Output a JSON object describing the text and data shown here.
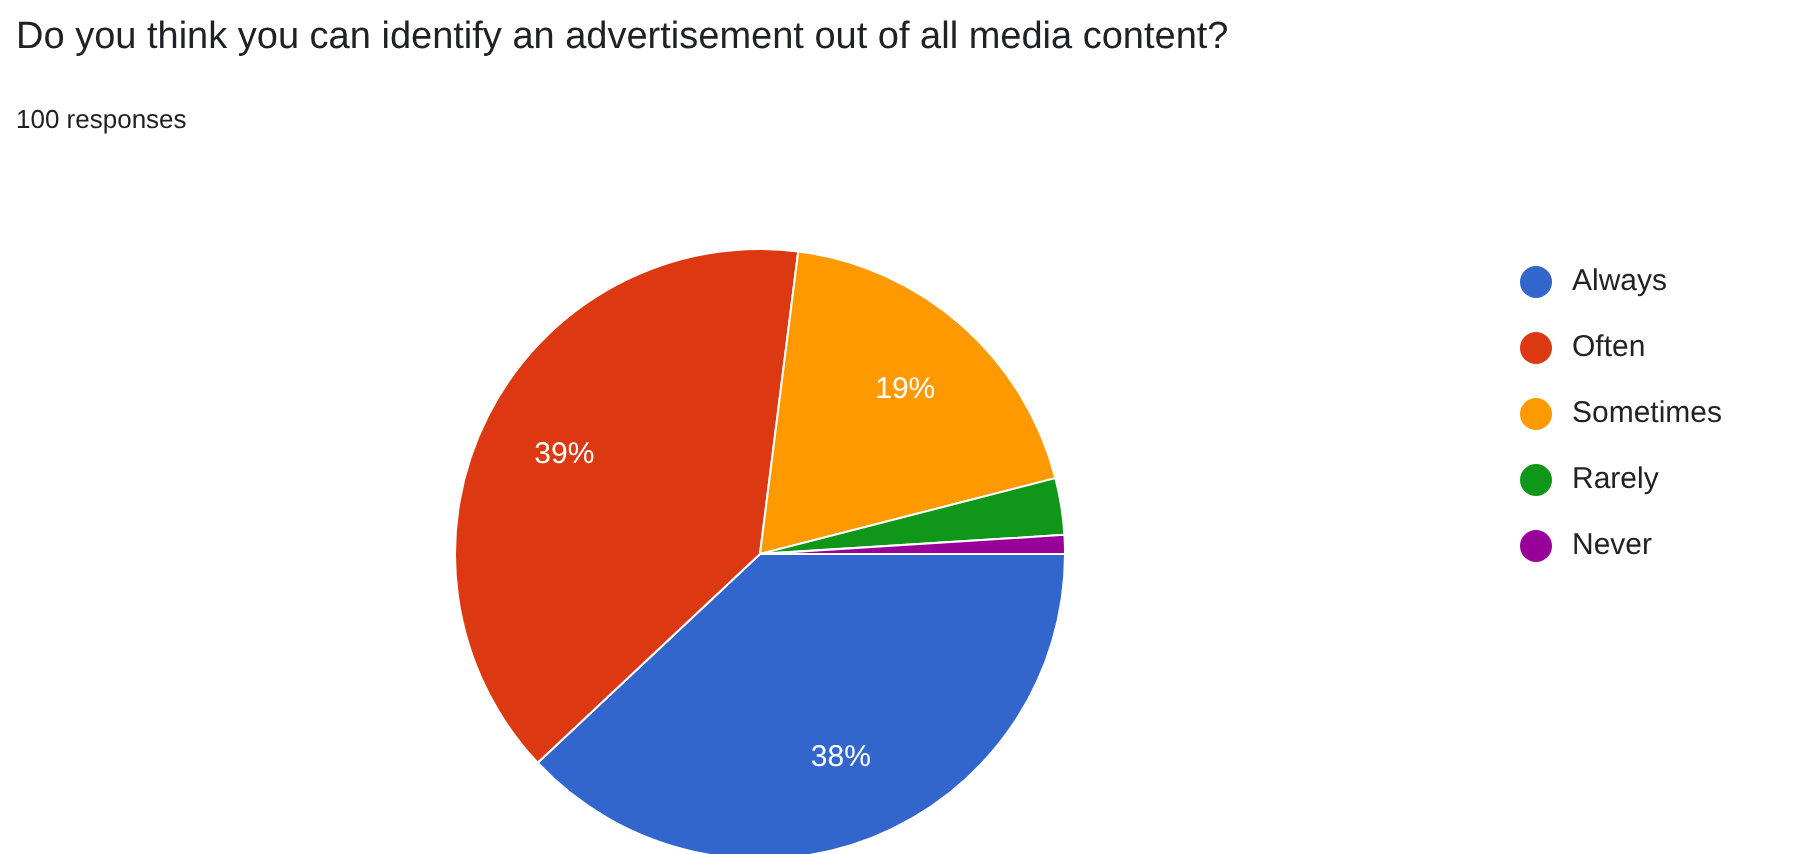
{
  "chart_data": {
    "type": "pie",
    "title": "Do you think you can identify an advertisement out of all media content?",
    "subtitle": "100 responses",
    "categories": [
      "Always",
      "Often",
      "Sometimes",
      "Rarely",
      "Never"
    ],
    "values": [
      38,
      39,
      19,
      3,
      1
    ],
    "colors": [
      "#3366cc",
      "#dc3912",
      "#ff9900",
      "#109618",
      "#990099"
    ],
    "value_labels": [
      "38%",
      "39%",
      "19%",
      null,
      null
    ],
    "legend": "right"
  }
}
